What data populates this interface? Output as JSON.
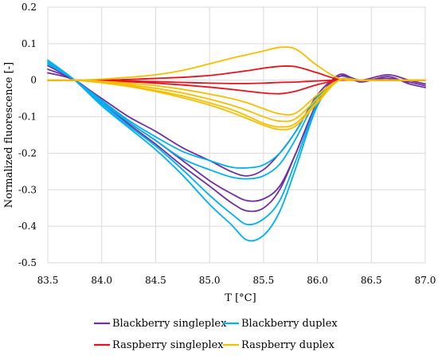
{
  "chart_data": {
    "type": "line",
    "xlabel": "T [°C]",
    "ylabel": "Normalized fluorescence [-]",
    "xlim": [
      83.5,
      87.0
    ],
    "ylim": [
      -0.5,
      0.2
    ],
    "xticks": [
      "83.5",
      "84.0",
      "84.5",
      "85.0",
      "85.5",
      "86.0",
      "86.5",
      "87.0"
    ],
    "yticks": [
      "0.2",
      "0.1",
      "0",
      "-0.1",
      "-0.2",
      "-0.3",
      "-0.4",
      "-0.5"
    ],
    "grid": "horizontal and vertical",
    "legend_position": "bottom",
    "legend": [
      {
        "label": "Blackberry singleplex",
        "color": "#7030A0"
      },
      {
        "label": "Blackberry duplex",
        "color": "#00B0F0"
      },
      {
        "label": "Raspberry singleplex",
        "color": "#E8121C"
      },
      {
        "label": "Raspberry duplex",
        "color": "#F7BE00"
      }
    ],
    "series": [
      {
        "group": "Blackberry singleplex",
        "color": "#7030A0",
        "x": [
          83.5,
          83.75,
          84.0,
          84.25,
          84.5,
          84.75,
          85.0,
          85.2,
          85.35,
          85.5,
          85.65,
          85.8,
          86.0,
          86.2,
          86.4,
          86.65,
          86.85,
          87.0
        ],
        "y": [
          0.02,
          0.0,
          -0.055,
          -0.115,
          -0.165,
          -0.22,
          -0.275,
          -0.31,
          -0.33,
          -0.325,
          -0.29,
          -0.2,
          -0.06,
          0.015,
          -0.005,
          0.01,
          -0.01,
          -0.02
        ]
      },
      {
        "group": "Blackberry singleplex",
        "color": "#7030A0",
        "x": [
          83.5,
          83.75,
          84.0,
          84.25,
          84.5,
          84.75,
          85.0,
          85.2,
          85.35,
          85.5,
          85.65,
          85.8,
          86.0,
          86.2,
          86.4,
          86.65,
          86.85,
          87.0
        ],
        "y": [
          0.03,
          0.0,
          -0.06,
          -0.12,
          -0.175,
          -0.235,
          -0.29,
          -0.335,
          -0.358,
          -0.35,
          -0.3,
          -0.2,
          -0.06,
          0.01,
          0.0,
          0.005,
          -0.005,
          -0.015
        ]
      },
      {
        "group": "Blackberry singleplex",
        "color": "#7030A0",
        "x": [
          83.5,
          83.75,
          84.0,
          84.25,
          84.5,
          84.75,
          85.0,
          85.2,
          85.35,
          85.5,
          85.65,
          85.8,
          86.0,
          86.2,
          86.4,
          86.65,
          86.85,
          87.0
        ],
        "y": [
          0.04,
          0.0,
          -0.05,
          -0.1,
          -0.14,
          -0.185,
          -0.22,
          -0.25,
          -0.262,
          -0.245,
          -0.2,
          -0.14,
          -0.04,
          0.01,
          0.0,
          0.015,
          0.0,
          -0.01
        ]
      },
      {
        "group": "Blackberry duplex",
        "color": "#00B0F0",
        "x": [
          83.5,
          83.75,
          84.0,
          84.25,
          84.5,
          84.75,
          85.0,
          85.2,
          85.35,
          85.5,
          85.65,
          85.8,
          86.0,
          86.2,
          86.4,
          86.65,
          86.85,
          87.0
        ],
        "y": [
          0.055,
          0.0,
          -0.07,
          -0.13,
          -0.19,
          -0.26,
          -0.34,
          -0.395,
          -0.438,
          -0.425,
          -0.36,
          -0.24,
          -0.07,
          0.0,
          0.0,
          0.0,
          0.0,
          0.0
        ]
      },
      {
        "group": "Blackberry duplex",
        "color": "#00B0F0",
        "x": [
          83.5,
          83.75,
          84.0,
          84.25,
          84.5,
          84.75,
          85.0,
          85.2,
          85.35,
          85.5,
          85.65,
          85.8,
          86.0,
          86.2,
          86.4,
          86.65,
          86.85,
          87.0
        ],
        "y": [
          0.05,
          0.0,
          -0.065,
          -0.125,
          -0.18,
          -0.245,
          -0.315,
          -0.365,
          -0.395,
          -0.38,
          -0.33,
          -0.22,
          -0.065,
          0.0,
          0.0,
          0.0,
          0.0,
          0.0
        ]
      },
      {
        "group": "Blackberry duplex",
        "color": "#00B0F0",
        "x": [
          83.5,
          83.75,
          84.0,
          84.25,
          84.5,
          84.75,
          85.0,
          85.2,
          85.35,
          85.5,
          85.65,
          85.8,
          86.0,
          86.2,
          86.4,
          86.65,
          86.85,
          87.0
        ],
        "y": [
          0.05,
          0.0,
          -0.06,
          -0.115,
          -0.165,
          -0.215,
          -0.245,
          -0.265,
          -0.27,
          -0.262,
          -0.23,
          -0.16,
          -0.05,
          0.0,
          0.0,
          0.0,
          0.0,
          0.0
        ]
      },
      {
        "group": "Blackberry duplex",
        "color": "#00B0F0",
        "x": [
          83.5,
          83.75,
          84.0,
          84.25,
          84.5,
          84.75,
          85.0,
          85.2,
          85.35,
          85.5,
          85.65,
          85.8,
          86.0,
          86.2,
          86.4,
          86.65,
          86.85,
          87.0
        ],
        "y": [
          0.045,
          0.0,
          -0.055,
          -0.11,
          -0.155,
          -0.195,
          -0.22,
          -0.238,
          -0.24,
          -0.232,
          -0.2,
          -0.14,
          -0.045,
          0.0,
          0.0,
          0.0,
          0.0,
          0.0
        ]
      },
      {
        "group": "Raspberry singleplex",
        "color": "#E8121C",
        "x": [
          83.5,
          83.75,
          84.0,
          84.25,
          84.5,
          84.75,
          85.0,
          85.2,
          85.35,
          85.5,
          85.65,
          85.8,
          86.0,
          86.2,
          86.4,
          86.65,
          86.85,
          87.0
        ],
        "y": [
          0.0,
          0.0,
          0.0,
          0.002,
          0.005,
          0.008,
          0.013,
          0.02,
          0.026,
          0.033,
          0.038,
          0.037,
          0.02,
          0.002,
          0.0,
          0.0,
          0.0,
          0.0
        ]
      },
      {
        "group": "Raspberry singleplex",
        "color": "#E8121C",
        "x": [
          83.5,
          83.75,
          84.0,
          84.25,
          84.5,
          84.75,
          85.0,
          85.2,
          85.35,
          85.5,
          85.65,
          85.8,
          86.0,
          86.2,
          86.4,
          86.65,
          86.85,
          87.0
        ],
        "y": [
          0.0,
          0.0,
          0.0,
          -0.002,
          -0.004,
          -0.006,
          -0.008,
          -0.009,
          -0.009,
          -0.008,
          -0.006,
          -0.005,
          -0.002,
          0.0,
          0.0,
          0.0,
          0.0,
          0.0
        ]
      },
      {
        "group": "Raspberry singleplex",
        "color": "#E8121C",
        "x": [
          83.5,
          83.75,
          84.0,
          84.25,
          84.5,
          84.75,
          85.0,
          85.2,
          85.35,
          85.5,
          85.65,
          85.8,
          86.0,
          86.2,
          86.4,
          86.65,
          86.85,
          87.0
        ],
        "y": [
          0.0,
          0.0,
          -0.002,
          -0.004,
          -0.008,
          -0.013,
          -0.019,
          -0.025,
          -0.03,
          -0.035,
          -0.037,
          -0.03,
          -0.012,
          0.0,
          0.0,
          0.0,
          0.0,
          0.0
        ]
      },
      {
        "group": "Raspberry duplex",
        "color": "#F7BE00",
        "x": [
          83.5,
          83.75,
          84.0,
          84.25,
          84.5,
          84.75,
          85.0,
          85.2,
          85.35,
          85.5,
          85.65,
          85.8,
          86.0,
          86.2,
          86.4,
          86.65,
          86.85,
          87.0
        ],
        "y": [
          0.0,
          0.0,
          0.003,
          0.008,
          0.015,
          0.027,
          0.045,
          0.06,
          0.07,
          0.08,
          0.09,
          0.085,
          0.04,
          0.005,
          0.0,
          0.0,
          0.0,
          0.0
        ]
      },
      {
        "group": "Raspberry duplex",
        "color": "#F7BE00",
        "x": [
          83.5,
          83.75,
          84.0,
          84.25,
          84.5,
          84.75,
          85.0,
          85.2,
          85.35,
          85.5,
          85.65,
          85.8,
          86.0,
          86.2,
          86.4,
          86.65,
          86.85,
          87.0
        ],
        "y": [
          0.0,
          0.0,
          -0.003,
          -0.008,
          -0.015,
          -0.025,
          -0.038,
          -0.05,
          -0.062,
          -0.078,
          -0.092,
          -0.09,
          -0.04,
          0.0,
          0.0,
          0.0,
          0.0,
          0.0
        ]
      },
      {
        "group": "Raspberry duplex",
        "color": "#F7BE00",
        "x": [
          83.5,
          83.75,
          84.0,
          84.25,
          84.5,
          84.75,
          85.0,
          85.2,
          85.35,
          85.5,
          85.65,
          85.8,
          86.0,
          86.2,
          86.4,
          86.65,
          86.85,
          87.0
        ],
        "y": [
          0.0,
          0.0,
          -0.005,
          -0.012,
          -0.022,
          -0.035,
          -0.052,
          -0.068,
          -0.083,
          -0.1,
          -0.112,
          -0.105,
          -0.05,
          0.0,
          0.0,
          0.0,
          0.0,
          0.0
        ]
      },
      {
        "group": "Raspberry duplex",
        "color": "#F7BE00",
        "x": [
          83.5,
          83.75,
          84.0,
          84.25,
          84.5,
          84.75,
          85.0,
          85.2,
          85.35,
          85.5,
          85.65,
          85.8,
          86.0,
          86.2,
          86.4,
          86.65,
          86.85,
          87.0
        ],
        "y": [
          0.0,
          0.0,
          -0.006,
          -0.015,
          -0.028,
          -0.043,
          -0.062,
          -0.08,
          -0.098,
          -0.118,
          -0.128,
          -0.118,
          -0.058,
          0.0,
          0.0,
          0.0,
          0.0,
          0.0
        ]
      },
      {
        "group": "Raspberry duplex",
        "color": "#F7BE00",
        "x": [
          83.5,
          83.75,
          84.0,
          84.25,
          84.5,
          84.75,
          85.0,
          85.2,
          85.35,
          85.5,
          85.65,
          85.8,
          86.0,
          86.2,
          86.4,
          86.65,
          86.85,
          87.0
        ],
        "y": [
          0.0,
          0.0,
          -0.007,
          -0.017,
          -0.031,
          -0.048,
          -0.068,
          -0.088,
          -0.105,
          -0.123,
          -0.135,
          -0.125,
          -0.062,
          0.0,
          0.0,
          0.0,
          0.0,
          0.0
        ]
      }
    ]
  }
}
